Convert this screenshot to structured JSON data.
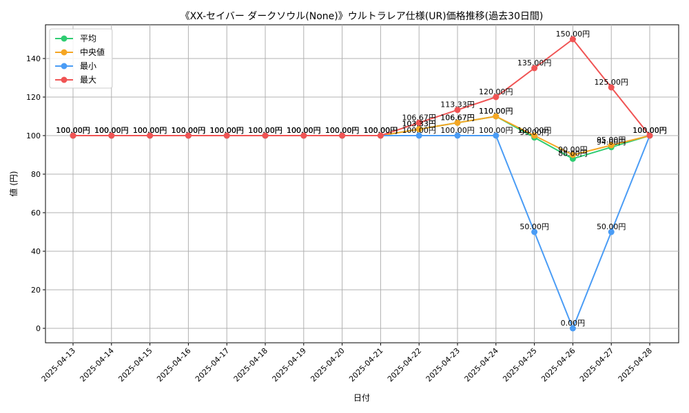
{
  "chart_data": {
    "type": "line",
    "title": "《XX-セイバー ダークソウル(None)》ウルトラレア仕様(UR)価格推移(過去30日間)",
    "xlabel": "日付",
    "ylabel": "値 (円)",
    "ylim": [
      -7.5,
      157.5
    ],
    "yticks": [
      0,
      20,
      40,
      60,
      80,
      100,
      120,
      140
    ],
    "grid": true,
    "legend_position": "top-left",
    "label_suffix": "円",
    "categories": [
      "2025-04-13",
      "2025-04-14",
      "2025-04-15",
      "2025-04-16",
      "2025-04-17",
      "2025-04-18",
      "2025-04-19",
      "2025-04-20",
      "2025-04-21",
      "2025-04-22",
      "2025-04-23",
      "2025-04-24",
      "2025-04-25",
      "2025-04-26",
      "2025-04-27",
      "2025-04-28"
    ],
    "series": [
      {
        "name": "平均",
        "color": "#2ecc71",
        "values": [
          100,
          100,
          100,
          100,
          100,
          100,
          100,
          100,
          100,
          103.33,
          106.67,
          110,
          99,
          88,
          94,
          100
        ]
      },
      {
        "name": "中央値",
        "color": "#f5a623",
        "values": [
          100,
          100,
          100,
          100,
          100,
          100,
          100,
          100,
          100,
          103.33,
          106.67,
          110,
          100,
          90,
          95,
          100
        ]
      },
      {
        "name": "最小",
        "color": "#4a9cf5",
        "values": [
          100,
          100,
          100,
          100,
          100,
          100,
          100,
          100,
          100,
          100,
          100,
          100,
          50,
          0,
          50,
          100
        ]
      },
      {
        "name": "最大",
        "color": "#f05454",
        "values": [
          100,
          100,
          100,
          100,
          100,
          100,
          100,
          100,
          100,
          106.67,
          113.33,
          120,
          135,
          150,
          125,
          100
        ]
      }
    ]
  }
}
